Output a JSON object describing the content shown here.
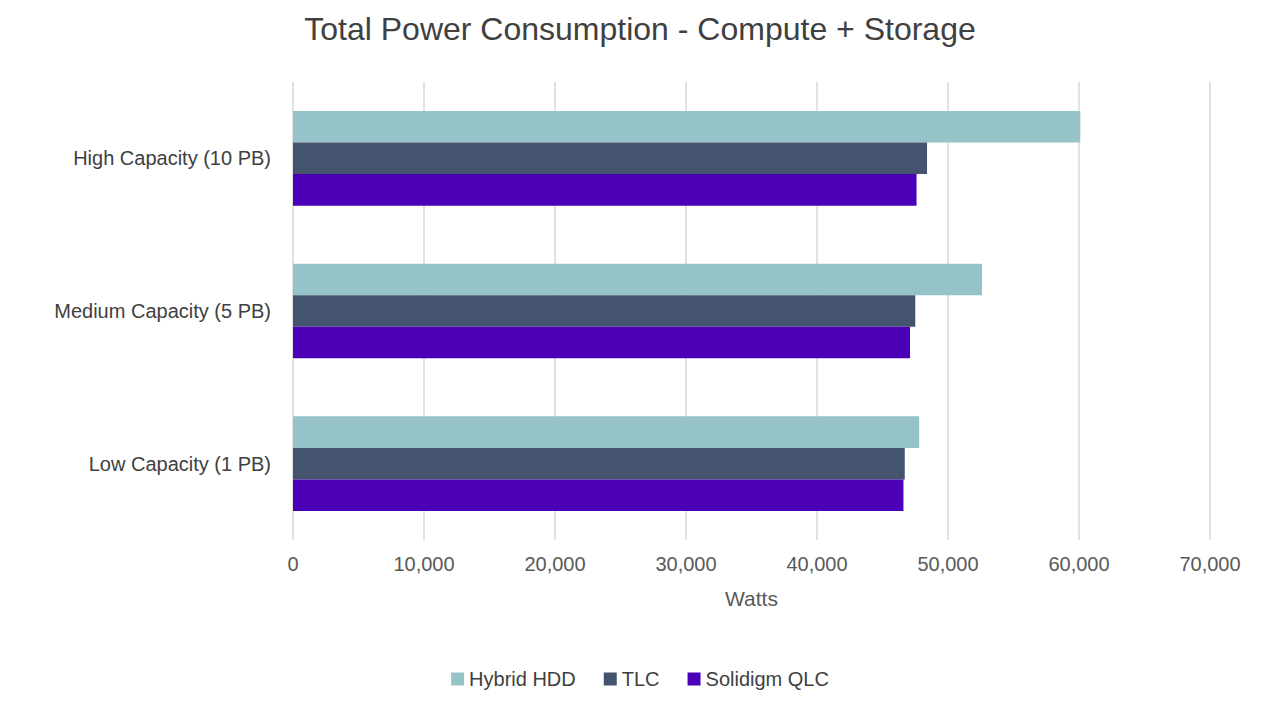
{
  "chart_data": {
    "type": "bar",
    "orientation": "horizontal",
    "title": "Total Power Consumption - Compute + Storage",
    "xlabel": "Watts",
    "categories": [
      "High Capacity (10 PB)",
      "Medium Capacity (5 PB)",
      "Low Capacity (1 PB)"
    ],
    "series": [
      {
        "name": "Hybrid HDD",
        "color": "#96c3c8",
        "values": [
          60100,
          52600,
          47800
        ]
      },
      {
        "name": "TLC",
        "color": "#44546e",
        "values": [
          48400,
          47500,
          46700
        ]
      },
      {
        "name": "Solidigm QLC",
        "color": "#4b00b8",
        "values": [
          47600,
          47100,
          46600
        ]
      }
    ],
    "xlim": [
      0,
      70000
    ],
    "xticks": [
      0,
      {
        "value": 10000,
        "label": "10,000"
      },
      {
        "value": 20000,
        "label": "20,000"
      },
      {
        "value": 30000,
        "label": "30,000"
      },
      {
        "value": 40000,
        "label": "40,000"
      },
      {
        "value": 50000,
        "label": "50,000"
      },
      {
        "value": 60000,
        "label": "60,000"
      },
      {
        "value": 70000,
        "label": "70,000"
      }
    ],
    "grid": true,
    "legend": "bottom"
  }
}
